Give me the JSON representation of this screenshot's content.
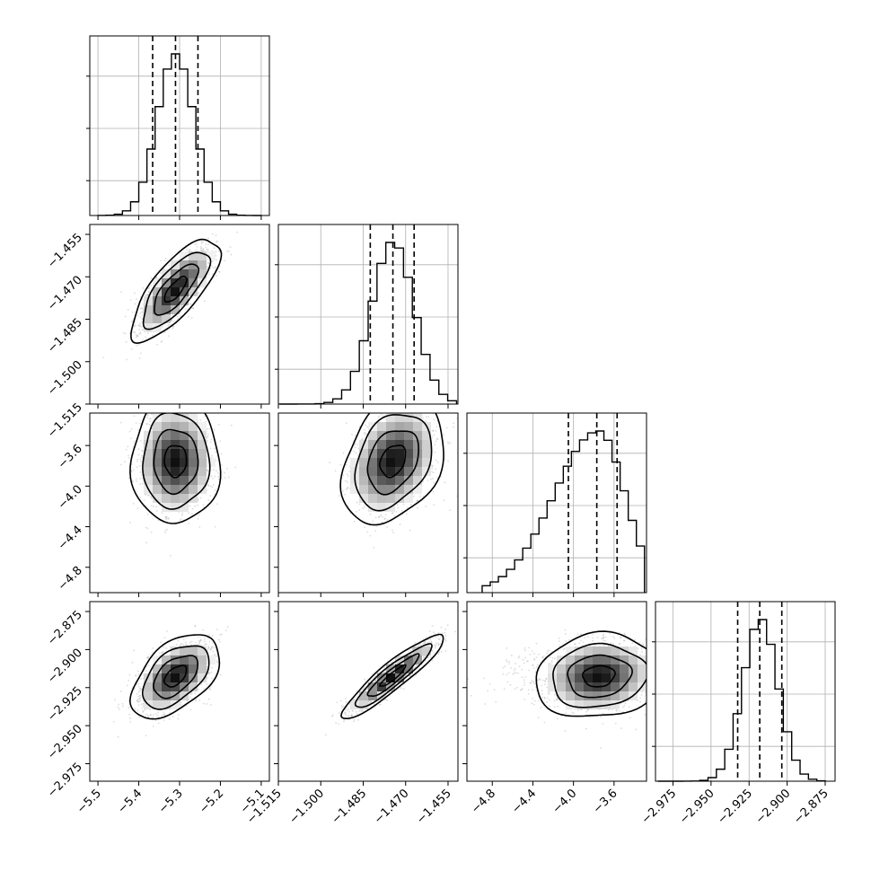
{
  "chart_data": {
    "type": "corner",
    "parameters": [
      {
        "range": [
          -5.52,
          -5.08
        ],
        "ticks": [
          -5.5,
          -5.4,
          -5.3,
          -5.2,
          -5.1
        ],
        "tick_labels": [
          "−5.5",
          "−5.4",
          "−5.3",
          "−5.2",
          "−5.1"
        ],
        "mean": -5.31,
        "sd": 0.045,
        "quantiles": [
          -5.366,
          -5.31,
          -5.255
        ],
        "hist_range": [
          -5.5,
          -5.1
        ]
      },
      {
        "range": [
          -1.515,
          -1.4515
        ],
        "ticks": [
          -1.515,
          -1.5,
          -1.485,
          -1.47,
          -1.455
        ],
        "tick_labels": [
          "−1.515",
          "−1.500",
          "−1.485",
          "−1.470",
          "−1.455"
        ],
        "mean": -1.4745,
        "sd": 0.0075,
        "quantiles": [
          -1.4825,
          -1.4745,
          -1.467
        ],
        "hist_range": [
          -1.5145,
          -1.452
        ]
      },
      {
        "range": [
          -5.05,
          -3.28
        ],
        "ticks": [
          -4.8,
          -4.4,
          -4.0,
          -3.6
        ],
        "tick_labels": [
          "−4.8",
          "−4.4",
          "−4.0",
          "−3.6"
        ],
        "mean": -3.75,
        "sd": 0.26,
        "quantiles": [
          -4.05,
          -3.77,
          -3.57
        ],
        "hist_range": [
          -4.9,
          -3.3
        ]
      },
      {
        "range": [
          -2.9865,
          -2.8685
        ],
        "ticks": [
          -2.975,
          -2.95,
          -2.925,
          -2.9,
          -2.875
        ],
        "tick_labels": [
          "−2.975",
          "−2.950",
          "−2.925",
          "−2.900",
          "−2.875"
        ],
        "mean": -2.9175,
        "sd": 0.0115,
        "quantiles": [
          -2.9325,
          -2.918,
          -2.9035
        ],
        "hist_range": [
          -2.985,
          -2.875
        ]
      }
    ],
    "correlations": {
      "1-0": 0.75,
      "2-0": 0.0,
      "2-1": 0.3,
      "3-0": 0.5,
      "3-1": 0.92,
      "3-2": 0.1
    },
    "grid": true,
    "colors": {
      "axes": "#000000",
      "grid": "#b0b0b0",
      "points": "#9a9a9a",
      "density": "#000000"
    }
  }
}
